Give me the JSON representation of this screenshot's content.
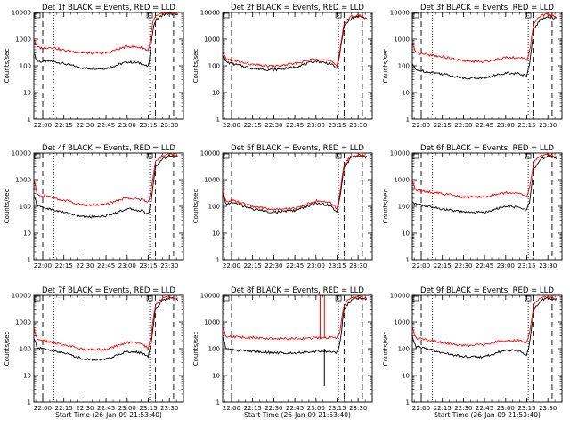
{
  "page": {
    "background": "#ffffff"
  },
  "colors": {
    "events": "#000000",
    "lld": "#ff0000",
    "axis": "#000000"
  },
  "chart_data": [
    {
      "type": "line",
      "title": "Det 1f BLACK = Events, RED = LLD",
      "xlabel": "",
      "ylabel": "Counts/sec",
      "yscale": "log",
      "ylim": [
        1,
        10000
      ],
      "xlim": [
        "21:53:40",
        "23:40:00"
      ],
      "x_ticks": [
        "22:00",
        "22:15",
        "22:30",
        "22:45",
        "23:00",
        "23:15",
        "23:30"
      ],
      "y_ticks": [
        "1",
        "10",
        "100",
        "1000",
        "10000"
      ],
      "dashed_lines": [
        "22:00",
        "23:20",
        "23:33"
      ],
      "dotted_lines": [
        "22:08",
        "23:16"
      ],
      "series": [
        {
          "key": "events",
          "x": [
            "21:53:40",
            "21:56",
            "22:00",
            "22:06",
            "22:15",
            "22:30",
            "22:45",
            "23:00",
            "23:10",
            "23:15",
            "23:16",
            "23:18",
            "23:20",
            "23:25",
            "23:30",
            "23:36"
          ],
          "values": [
            300,
            150,
            140,
            150,
            120,
            80,
            80,
            140,
            125,
            90,
            200,
            2000,
            5000,
            8000,
            9000,
            8000
          ]
        },
        {
          "key": "lld",
          "x": [
            "21:53:40",
            "21:56",
            "22:00",
            "22:06",
            "22:15",
            "22:30",
            "22:45",
            "23:00",
            "23:10",
            "23:15",
            "23:16",
            "23:18",
            "23:20",
            "23:25",
            "23:30",
            "23:36"
          ],
          "values": [
            1000,
            500,
            450,
            500,
            380,
            300,
            300,
            540,
            480,
            380,
            700,
            4000,
            7000,
            9000,
            9000,
            8000
          ]
        }
      ]
    },
    {
      "type": "line",
      "title": "Det 2f BLACK = Events, RED = LLD",
      "xlabel": "",
      "ylabel": "Counts/sec",
      "yscale": "log",
      "ylim": [
        1,
        10000
      ],
      "xlim": [
        "21:53:40",
        "23:40:00"
      ],
      "x_ticks": [
        "22:00",
        "22:15",
        "22:30",
        "22:45",
        "23:00",
        "23:15",
        "23:30"
      ],
      "y_ticks": [
        "1",
        "10",
        "100",
        "1000",
        "10000"
      ],
      "dashed_lines": [
        "22:00",
        "23:20",
        "23:33"
      ],
      "dotted_lines": [
        "23:16"
      ],
      "series": [
        {
          "key": "events",
          "x": [
            "21:53:40",
            "21:56",
            "22:00",
            "22:15",
            "22:30",
            "22:45",
            "23:00",
            "23:10",
            "23:15",
            "23:17",
            "23:20",
            "23:25",
            "23:30",
            "23:36"
          ],
          "values": [
            260,
            140,
            120,
            80,
            70,
            90,
            150,
            120,
            80,
            300,
            3000,
            6000,
            7000,
            6000
          ]
        },
        {
          "key": "lld",
          "x": [
            "21:53:40",
            "21:56",
            "22:00",
            "22:15",
            "22:30",
            "22:45",
            "23:00",
            "23:10",
            "23:15",
            "23:17",
            "23:20",
            "23:25",
            "23:30",
            "23:36"
          ],
          "values": [
            300,
            180,
            160,
            110,
            95,
            120,
            190,
            150,
            100,
            400,
            4000,
            7000,
            8000,
            6000
          ]
        }
      ]
    },
    {
      "type": "line",
      "title": "Det 3f BLACK = Events, RED = LLD",
      "xlabel": "",
      "ylabel": "Counts/sec",
      "yscale": "log",
      "ylim": [
        1,
        10000
      ],
      "xlim": [
        "21:53:40",
        "23:40:00"
      ],
      "x_ticks": [
        "22:00",
        "22:15",
        "22:30",
        "22:45",
        "23:00",
        "23:15",
        "23:30"
      ],
      "y_ticks": [
        "1",
        "10",
        "100",
        "1000",
        "10000"
      ],
      "dashed_lines": [
        "22:00",
        "23:20",
        "23:33"
      ],
      "dotted_lines": [
        "22:08",
        "23:16"
      ],
      "series": [
        {
          "key": "events",
          "x": [
            "21:53:40",
            "21:56",
            "22:00",
            "22:15",
            "22:30",
            "22:45",
            "23:00",
            "23:10",
            "23:15",
            "23:17",
            "23:20",
            "23:25",
            "23:30",
            "23:36"
          ],
          "values": [
            120,
            70,
            65,
            50,
            35,
            35,
            55,
            50,
            40,
            120,
            2500,
            5500,
            7000,
            6000
          ]
        },
        {
          "key": "lld",
          "x": [
            "21:53:40",
            "21:56",
            "22:00",
            "22:15",
            "22:30",
            "22:45",
            "23:00",
            "23:10",
            "23:15",
            "23:17",
            "23:20",
            "23:25",
            "23:30",
            "23:36"
          ],
          "values": [
            700,
            300,
            280,
            220,
            150,
            140,
            210,
            200,
            170,
            350,
            4000,
            7500,
            8500,
            7000
          ]
        }
      ]
    },
    {
      "type": "line",
      "title": "Det 4f BLACK = Events, RED = LLD",
      "xlabel": "",
      "ylabel": "Counts/sec",
      "yscale": "log",
      "ylim": [
        1,
        10000
      ],
      "xlim": [
        "21:53:40",
        "23:40:00"
      ],
      "x_ticks": [
        "22:00",
        "22:15",
        "22:30",
        "22:45",
        "23:00",
        "23:15",
        "23:30"
      ],
      "y_ticks": [
        "1",
        "10",
        "100",
        "1000",
        "10000"
      ],
      "dashed_lines": [
        "22:00",
        "23:20",
        "23:33"
      ],
      "dotted_lines": [
        "22:08",
        "23:16"
      ],
      "series": [
        {
          "key": "events",
          "x": [
            "21:53:40",
            "21:56",
            "22:00",
            "22:15",
            "22:30",
            "22:45",
            "23:00",
            "23:10",
            "23:15",
            "23:17",
            "23:20",
            "23:25",
            "23:30",
            "23:36"
          ],
          "values": [
            250,
            110,
            90,
            60,
            40,
            45,
            80,
            70,
            50,
            150,
            3000,
            6000,
            8000,
            7000
          ]
        },
        {
          "key": "lld",
          "x": [
            "21:53:40",
            "21:56",
            "22:00",
            "22:15",
            "22:30",
            "22:45",
            "23:00",
            "23:10",
            "23:15",
            "23:17",
            "23:20",
            "23:25",
            "23:30",
            "23:36"
          ],
          "values": [
            1000,
            300,
            250,
            170,
            110,
            120,
            210,
            180,
            140,
            400,
            4500,
            8000,
            9000,
            7500
          ]
        }
      ]
    },
    {
      "type": "line",
      "title": "Det 5f BLACK = Events, RED = LLD",
      "xlabel": "",
      "ylabel": "Counts/sec",
      "yscale": "log",
      "ylim": [
        1,
        10000
      ],
      "xlim": [
        "21:53:40",
        "23:40:00"
      ],
      "x_ticks": [
        "22:00",
        "22:15",
        "22:30",
        "22:45",
        "23:00",
        "23:15",
        "23:30"
      ],
      "y_ticks": [
        "1",
        "10",
        "100",
        "1000",
        "10000"
      ],
      "dashed_lines": [
        "22:00",
        "23:20",
        "23:33"
      ],
      "dotted_lines": [
        "23:16"
      ],
      "series": [
        {
          "key": "events",
          "x": [
            "21:53:40",
            "21:56",
            "22:00",
            "22:15",
            "22:30",
            "22:45",
            "23:00",
            "23:10",
            "23:15",
            "23:17",
            "23:20",
            "23:25",
            "23:30",
            "23:36"
          ],
          "values": [
            300,
            120,
            140,
            80,
            60,
            70,
            130,
            110,
            60,
            200,
            3000,
            6500,
            8000,
            7000
          ]
        },
        {
          "key": "lld",
          "x": [
            "21:53:40",
            "21:56",
            "22:00",
            "22:15",
            "22:30",
            "22:45",
            "23:00",
            "23:10",
            "23:15",
            "23:17",
            "23:20",
            "23:25",
            "23:30",
            "23:36"
          ],
          "values": [
            350,
            150,
            170,
            100,
            75,
            85,
            160,
            140,
            80,
            300,
            4000,
            7500,
            8500,
            7500
          ]
        }
      ]
    },
    {
      "type": "line",
      "title": "Det 6f BLACK = Events, RED = LLD",
      "xlabel": "",
      "ylabel": "Counts/sec",
      "yscale": "log",
      "ylim": [
        1,
        10000
      ],
      "xlim": [
        "21:53:40",
        "23:40:00"
      ],
      "x_ticks": [
        "22:00",
        "22:15",
        "22:30",
        "22:45",
        "23:00",
        "23:15",
        "23:30"
      ],
      "y_ticks": [
        "1",
        "10",
        "100",
        "1000",
        "10000"
      ],
      "dashed_lines": [
        "22:00",
        "23:20",
        "23:33"
      ],
      "dotted_lines": [
        "22:08",
        "23:16"
      ],
      "series": [
        {
          "key": "events",
          "x": [
            "21:53:40",
            "21:56",
            "22:00",
            "22:15",
            "22:30",
            "22:45",
            "23:00",
            "23:10",
            "23:15",
            "23:17",
            "23:20",
            "23:25",
            "23:30",
            "23:36"
          ],
          "values": [
            150,
            120,
            110,
            80,
            60,
            60,
            100,
            90,
            70,
            150,
            2500,
            6000,
            7500,
            6500
          ]
        },
        {
          "key": "lld",
          "x": [
            "21:53:40",
            "21:56",
            "22:00",
            "22:15",
            "22:30",
            "22:45",
            "23:00",
            "23:10",
            "23:15",
            "23:17",
            "23:20",
            "23:25",
            "23:30",
            "23:36"
          ],
          "values": [
            1000,
            400,
            380,
            300,
            220,
            230,
            330,
            300,
            230,
            500,
            4500,
            8000,
            9000,
            7500
          ]
        }
      ]
    },
    {
      "type": "line",
      "title": "Det 7f BLACK = Events, RED = LLD",
      "xlabel": "Start Time (26-Jan-09 21:53:40)",
      "ylabel": "Counts/sec",
      "yscale": "log",
      "ylim": [
        1,
        10000
      ],
      "xlim": [
        "21:53:40",
        "23:40:00"
      ],
      "x_ticks": [
        "22:00",
        "22:15",
        "22:30",
        "22:45",
        "23:00",
        "23:15",
        "23:30"
      ],
      "y_ticks": [
        "1",
        "10",
        "100",
        "1000",
        "10000"
      ],
      "dashed_lines": [
        "22:00",
        "23:20",
        "23:33"
      ],
      "dotted_lines": [
        "22:08",
        "23:16"
      ],
      "series": [
        {
          "key": "events",
          "x": [
            "21:53:40",
            "21:56",
            "22:00",
            "22:15",
            "22:30",
            "22:45",
            "23:00",
            "23:10",
            "23:15",
            "23:17",
            "23:20",
            "23:25",
            "23:30",
            "23:36"
          ],
          "values": [
            250,
            110,
            100,
            70,
            40,
            40,
            80,
            70,
            50,
            150,
            3000,
            6500,
            8000,
            7000
          ]
        },
        {
          "key": "lld",
          "x": [
            "21:53:40",
            "21:56",
            "22:00",
            "22:15",
            "22:30",
            "22:45",
            "23:00",
            "23:10",
            "23:15",
            "23:17",
            "23:20",
            "23:25",
            "23:30",
            "23:36"
          ],
          "values": [
            600,
            220,
            200,
            140,
            90,
            95,
            170,
            160,
            100,
            350,
            4500,
            8000,
            9000,
            7500
          ]
        }
      ]
    },
    {
      "type": "line",
      "title": "Det 8f BLACK = Events, RED = LLD",
      "xlabel": "Start Time (26-Jan-09 21:53:40)",
      "ylabel": "Counts/sec",
      "yscale": "log",
      "ylim": [
        1,
        10000
      ],
      "xlim": [
        "21:53:40",
        "23:40:00"
      ],
      "x_ticks": [
        "22:00",
        "22:15",
        "22:30",
        "22:45",
        "23:00",
        "23:15",
        "23:30"
      ],
      "y_ticks": [
        "1",
        "10",
        "100",
        "1000",
        "10000"
      ],
      "dashed_lines": [
        "22:00",
        "23:20",
        "23:33"
      ],
      "dotted_lines": [
        "23:16"
      ],
      "spikes": [
        {
          "key": "lld",
          "x": "23:03",
          "values": [
            250,
            10000
          ]
        },
        {
          "key": "lld",
          "x": "23:06",
          "values": [
            250,
            10000
          ]
        },
        {
          "key": "events",
          "x": "23:06",
          "values": [
            100,
            4
          ]
        }
      ],
      "series": [
        {
          "key": "events",
          "x": [
            "21:53:40",
            "21:56",
            "22:00",
            "22:15",
            "22:30",
            "22:45",
            "23:00",
            "23:10",
            "23:15",
            "23:17",
            "23:20",
            "23:25",
            "23:30",
            "23:36"
          ],
          "values": [
            300,
            100,
            90,
            80,
            70,
            70,
            80,
            80,
            70,
            150,
            3000,
            6500,
            8000,
            7000
          ]
        },
        {
          "key": "lld",
          "x": [
            "21:53:40",
            "21:56",
            "22:00",
            "22:15",
            "22:30",
            "22:45",
            "23:00",
            "23:10",
            "23:15",
            "23:17",
            "23:20",
            "23:25",
            "23:30",
            "23:36"
          ],
          "values": [
            700,
            300,
            280,
            260,
            240,
            240,
            250,
            260,
            250,
            450,
            4500,
            8000,
            9000,
            7500
          ]
        }
      ]
    },
    {
      "type": "line",
      "title": "Det 9f BLACK = Events, RED = LLD",
      "xlabel": "Start Time (26-Jan-09 21:53:40)",
      "ylabel": "Counts/sec",
      "yscale": "log",
      "ylim": [
        1,
        10000
      ],
      "xlim": [
        "21:53:40",
        "23:40:00"
      ],
      "x_ticks": [
        "22:00",
        "22:15",
        "22:30",
        "22:45",
        "23:00",
        "23:15",
        "23:30"
      ],
      "y_ticks": [
        "1",
        "10",
        "100",
        "1000",
        "10000"
      ],
      "dashed_lines": [
        "22:00",
        "23:20",
        "23:33"
      ],
      "dotted_lines": [
        "22:08",
        "23:16"
      ],
      "series": [
        {
          "key": "events",
          "x": [
            "21:53:40",
            "21:56",
            "22:00",
            "22:15",
            "22:30",
            "22:45",
            "23:00",
            "23:10",
            "23:15",
            "23:17",
            "23:20",
            "23:25",
            "23:30",
            "23:36"
          ],
          "values": [
            300,
            120,
            110,
            70,
            50,
            50,
            90,
            80,
            60,
            150,
            3000,
            6500,
            8000,
            7000
          ]
        },
        {
          "key": "lld",
          "x": [
            "21:53:40",
            "21:56",
            "22:00",
            "22:15",
            "22:30",
            "22:45",
            "23:00",
            "23:10",
            "23:15",
            "23:17",
            "23:20",
            "23:25",
            "23:30",
            "23:36"
          ],
          "values": [
            700,
            250,
            240,
            170,
            130,
            140,
            210,
            200,
            160,
            400,
            4500,
            8000,
            9000,
            7500
          ]
        }
      ]
    }
  ]
}
